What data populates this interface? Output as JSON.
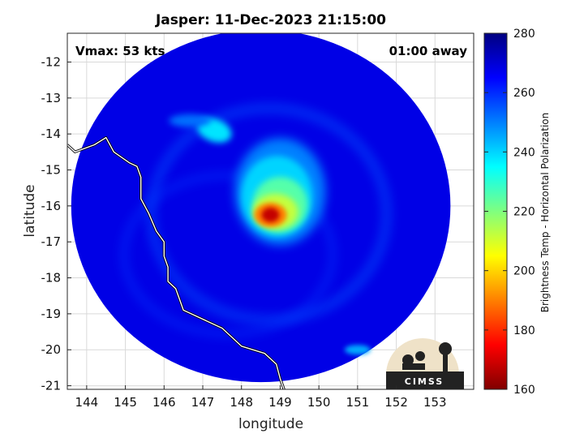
{
  "chart_data": {
    "type": "heatmap",
    "title": "Jasper: 11-Dec-2023 21:15:00",
    "xlabel": "longitude",
    "ylabel": "latitude",
    "xlim": [
      143.5,
      154
    ],
    "ylim": [
      -21.1,
      -11.2
    ],
    "xticks": [
      "144",
      "145",
      "146",
      "147",
      "148",
      "149",
      "150",
      "151",
      "152",
      "153"
    ],
    "yticks": [
      "-12",
      "-13",
      "-14",
      "-15",
      "-16",
      "-17",
      "-18",
      "-19",
      "-20",
      "-21"
    ],
    "grid": true,
    "annotations": {
      "vmax": "Vmax: 53 kts",
      "time_away": "01:00 away"
    },
    "colorbar": {
      "label": "Brightness Temp - Horizontal Polarization",
      "range": [
        160,
        280
      ],
      "ticks": [
        "280",
        "260",
        "240",
        "220",
        "200",
        "180",
        "160"
      ],
      "colormap": "jet"
    },
    "swath": {
      "center_lon": 148.5,
      "center_lat": -16.0,
      "radius_deg": 4.9,
      "background_tb": 268
    },
    "features": [
      {
        "name": "eyewall core",
        "lon": 148.75,
        "lat": -16.25,
        "tb": 168
      },
      {
        "name": "inner convection",
        "lon": 149.0,
        "lat": -15.6,
        "tb": 225
      },
      {
        "name": "northwest rainband",
        "lon": 147.3,
        "lat": -13.9,
        "tb": 238
      },
      {
        "name": "southeast band",
        "lon": 151.0,
        "lat": -20.0,
        "tb": 245
      }
    ],
    "coastline_lonlat": [
      [
        143.5,
        -14.3
      ],
      [
        143.7,
        -14.5
      ],
      [
        144.2,
        -14.3
      ],
      [
        144.5,
        -14.1
      ],
      [
        144.7,
        -14.5
      ],
      [
        145.1,
        -14.8
      ],
      [
        145.3,
        -14.9
      ],
      [
        145.4,
        -15.2
      ],
      [
        145.4,
        -15.8
      ],
      [
        145.6,
        -16.2
      ],
      [
        145.8,
        -16.7
      ],
      [
        146.0,
        -17.0
      ],
      [
        146.0,
        -17.4
      ],
      [
        146.1,
        -17.7
      ],
      [
        146.1,
        -18.1
      ],
      [
        146.3,
        -18.3
      ],
      [
        146.4,
        -18.6
      ],
      [
        146.5,
        -18.9
      ],
      [
        147.1,
        -19.2
      ],
      [
        147.5,
        -19.4
      ],
      [
        148.0,
        -19.9
      ],
      [
        148.6,
        -20.1
      ],
      [
        148.9,
        -20.4
      ],
      [
        149.0,
        -20.8
      ],
      [
        149.1,
        -21.1
      ]
    ]
  },
  "logo": {
    "text": "CIMSS"
  }
}
